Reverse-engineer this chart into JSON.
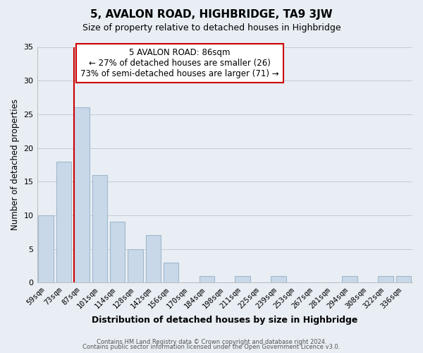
{
  "title": "5, AVALON ROAD, HIGHBRIDGE, TA9 3JW",
  "subtitle": "Size of property relative to detached houses in Highbridge",
  "xlabel": "Distribution of detached houses by size in Highbridge",
  "ylabel": "Number of detached properties",
  "bar_labels": [
    "59sqm",
    "73sqm",
    "87sqm",
    "101sqm",
    "114sqm",
    "128sqm",
    "142sqm",
    "156sqm",
    "170sqm",
    "184sqm",
    "198sqm",
    "211sqm",
    "225sqm",
    "239sqm",
    "253sqm",
    "267sqm",
    "281sqm",
    "294sqm",
    "308sqm",
    "322sqm",
    "336sqm"
  ],
  "bar_values": [
    10,
    18,
    26,
    16,
    9,
    5,
    7,
    3,
    0,
    1,
    0,
    1,
    0,
    1,
    0,
    0,
    0,
    1,
    0,
    1,
    1
  ],
  "bar_color": "#c8d8e8",
  "bar_edge_color": "#a0b8cc",
  "marker_index": 2,
  "marker_color": "#cc0000",
  "ylim": [
    0,
    35
  ],
  "yticks": [
    0,
    5,
    10,
    15,
    20,
    25,
    30,
    35
  ],
  "annotation_title": "5 AVALON ROAD: 86sqm",
  "annotation_line1": "← 27% of detached houses are smaller (26)",
  "annotation_line2": "73% of semi-detached houses are larger (71) →",
  "footer1": "Contains HM Land Registry data © Crown copyright and database right 2024.",
  "footer2": "Contains public sector information licensed under the Open Government Licence v3.0.",
  "background_color": "#e8eef4",
  "plot_bg_color": "#e8eef4",
  "grid_color": "#c0ccd8"
}
